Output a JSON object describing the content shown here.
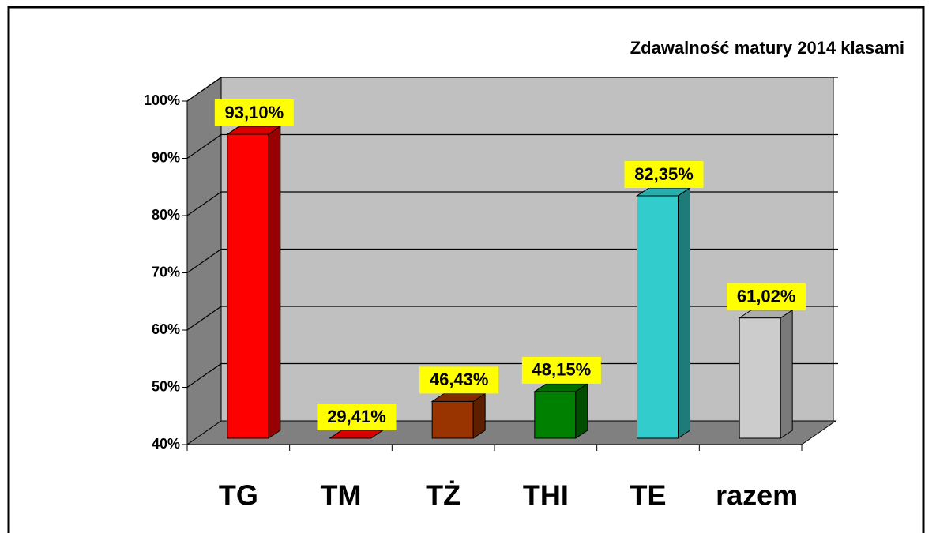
{
  "chart_data": {
    "type": "bar",
    "title": "Zdawalność matury 2014 klasami",
    "categories": [
      "TG",
      "TM",
      "TŻ",
      "THI",
      "TE",
      "razem"
    ],
    "values": [
      93.1,
      29.41,
      46.43,
      48.15,
      82.35,
      61.02
    ],
    "value_labels": [
      "93,10%",
      "29,41%",
      "46,43%",
      "48,15%",
      "82,35%",
      "61,02%"
    ],
    "colors": [
      "#ff0000",
      "#ff0000",
      "#993300",
      "#008000",
      "#33cccc",
      "#cccccc"
    ],
    "ylim": [
      40,
      100
    ],
    "yticks": [
      {
        "value": 40,
        "label": "40%"
      },
      {
        "value": 50,
        "label": "50%"
      },
      {
        "value": 60,
        "label": "60%"
      },
      {
        "value": 70,
        "label": "70%"
      },
      {
        "value": 80,
        "label": "80%"
      },
      {
        "value": 90,
        "label": "90%"
      },
      {
        "value": 100,
        "label": "100%"
      }
    ],
    "grid": true
  }
}
